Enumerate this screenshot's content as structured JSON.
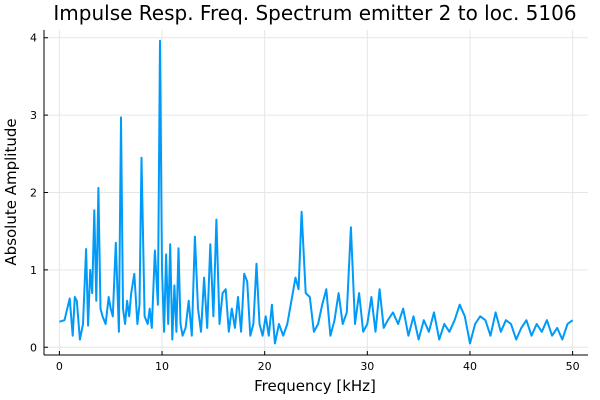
{
  "chart_data": {
    "type": "line",
    "title": "Impulse Resp. Freq. Spectrum emitter 2 to loc. 5106",
    "xlabel": "Frequency [kHz]",
    "ylabel": "Absolute Amplitude",
    "xlim": [
      -1.5,
      51.5
    ],
    "ylim": [
      -0.1,
      4.1
    ],
    "xticks": [
      0,
      10,
      20,
      30,
      40,
      50
    ],
    "yticks": [
      0,
      1,
      2,
      3,
      4
    ],
    "grid": true,
    "legend": "none",
    "line_color": "#009af9",
    "series": [
      {
        "x": [
          0.0,
          0.5,
          1.0,
          1.3,
          1.5,
          1.7,
          2.0,
          2.3,
          2.6,
          2.8,
          3.0,
          3.2,
          3.4,
          3.6,
          3.8,
          4.0,
          4.2,
          4.5,
          4.8,
          5.0,
          5.2,
          5.5,
          5.8,
          6.0,
          6.2,
          6.4,
          6.6,
          6.8,
          7.0,
          7.3,
          7.6,
          7.8,
          8.0,
          8.3,
          8.6,
          8.8,
          9.0,
          9.3,
          9.6,
          9.8,
          10.0,
          10.2,
          10.4,
          10.6,
          10.8,
          11.0,
          11.2,
          11.4,
          11.6,
          11.8,
          12.0,
          12.3,
          12.6,
          12.9,
          13.2,
          13.5,
          13.8,
          14.1,
          14.4,
          14.7,
          15.0,
          15.3,
          15.6,
          15.9,
          16.2,
          16.5,
          16.8,
          17.1,
          17.4,
          17.7,
          18.0,
          18.3,
          18.6,
          18.9,
          19.2,
          19.5,
          19.8,
          20.1,
          20.4,
          20.7,
          21.0,
          21.4,
          21.8,
          22.2,
          22.6,
          23.0,
          23.3,
          23.6,
          24.0,
          24.4,
          24.8,
          25.2,
          25.6,
          26.0,
          26.4,
          26.8,
          27.2,
          27.6,
          28.0,
          28.4,
          28.8,
          29.2,
          29.6,
          30.0,
          30.4,
          30.8,
          31.2,
          31.6,
          32.0,
          32.5,
          33.0,
          33.5,
          34.0,
          34.5,
          35.0,
          35.5,
          36.0,
          36.5,
          37.0,
          37.5,
          38.0,
          38.5,
          39.0,
          39.5,
          40.0,
          40.5,
          41.0,
          41.5,
          42.0,
          42.5,
          43.0,
          43.5,
          44.0,
          44.5,
          45.0,
          45.5,
          46.0,
          46.5,
          47.0,
          47.5,
          48.0,
          48.5,
          49.0,
          49.5,
          50.0
        ],
        "y": [
          0.33,
          0.35,
          0.63,
          0.15,
          0.65,
          0.6,
          0.1,
          0.3,
          1.27,
          0.28,
          1.0,
          0.7,
          1.77,
          0.6,
          2.06,
          0.5,
          0.4,
          0.3,
          0.65,
          0.5,
          0.4,
          1.35,
          0.2,
          2.97,
          0.5,
          0.3,
          0.6,
          0.4,
          0.7,
          0.95,
          0.3,
          0.55,
          2.45,
          0.4,
          0.3,
          0.5,
          0.25,
          1.25,
          0.55,
          3.96,
          1.0,
          0.2,
          1.2,
          0.3,
          1.33,
          0.1,
          0.8,
          0.2,
          1.28,
          0.3,
          0.15,
          0.25,
          0.6,
          0.15,
          1.43,
          0.5,
          0.2,
          0.9,
          0.25,
          1.33,
          0.4,
          1.65,
          0.3,
          0.7,
          0.75,
          0.2,
          0.5,
          0.25,
          0.65,
          0.2,
          0.95,
          0.85,
          0.15,
          0.3,
          1.08,
          0.3,
          0.15,
          0.4,
          0.15,
          0.55,
          0.05,
          0.3,
          0.15,
          0.3,
          0.6,
          0.9,
          0.75,
          1.75,
          0.7,
          0.65,
          0.2,
          0.3,
          0.55,
          0.75,
          0.15,
          0.35,
          0.7,
          0.3,
          0.45,
          1.55,
          0.3,
          0.7,
          0.2,
          0.3,
          0.65,
          0.2,
          0.75,
          0.25,
          0.35,
          0.45,
          0.3,
          0.5,
          0.15,
          0.4,
          0.1,
          0.35,
          0.2,
          0.45,
          0.1,
          0.3,
          0.2,
          0.35,
          0.55,
          0.4,
          0.05,
          0.3,
          0.4,
          0.35,
          0.15,
          0.45,
          0.2,
          0.35,
          0.3,
          0.1,
          0.25,
          0.35,
          0.15,
          0.3,
          0.2,
          0.35,
          0.15,
          0.25,
          0.1,
          0.3,
          0.35
        ]
      }
    ]
  }
}
